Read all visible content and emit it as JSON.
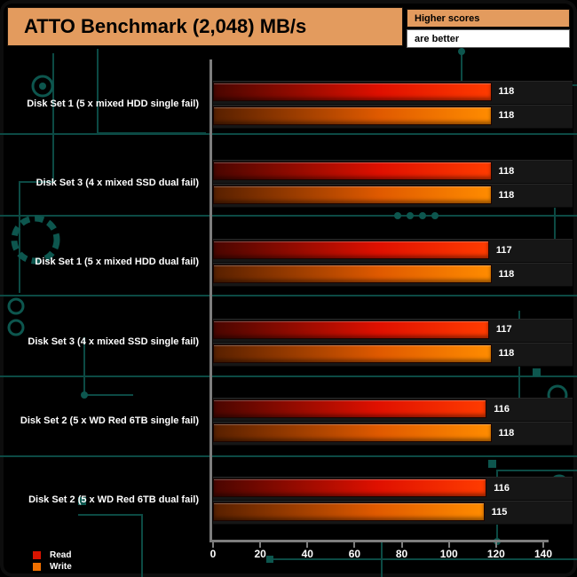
{
  "header": {
    "title": "ATTO Benchmark (2,048) MB/s",
    "note_top": "Higher scores",
    "note_bottom": "are better",
    "accent_color": "#e39b5e"
  },
  "legend": {
    "items": [
      {
        "label": "Read",
        "color": "#d81400"
      },
      {
        "label": "Write",
        "color": "#f07000"
      }
    ]
  },
  "chart_data": {
    "type": "bar",
    "orientation": "horizontal",
    "title": "ATTO Benchmark (2,048) MB/s",
    "units": "MB/s",
    "categories": [
      "Disk Set 1 (5 x mixed HDD single fail)",
      "Disk Set 3 (4 x mixed SSD dual fail)",
      "Disk Set 1 (5 x mixed HDD dual fail)",
      "Disk Set 3 (4 x mixed SSD single fail)",
      "Disk Set 2 (5 x WD Red 6TB single fail)",
      "Disk Set 2 (5 x WD Red 6TB dual fail)"
    ],
    "series": [
      {
        "name": "Read",
        "values": [
          118,
          118,
          117,
          117,
          116,
          116
        ],
        "gradient": [
          "#4a0600",
          "#df1000",
          "#ff3c00"
        ]
      },
      {
        "name": "Write",
        "values": [
          118,
          118,
          118,
          118,
          118,
          115
        ],
        "gradient": [
          "#582000",
          "#e05a00",
          "#ff8c00"
        ]
      }
    ],
    "xlim": [
      0,
      140
    ],
    "xticks": [
      0,
      20,
      40,
      60,
      80,
      100,
      120,
      140
    ],
    "xlabel": "",
    "ylabel": "",
    "grid": false,
    "legend_position": "bottom-left"
  }
}
